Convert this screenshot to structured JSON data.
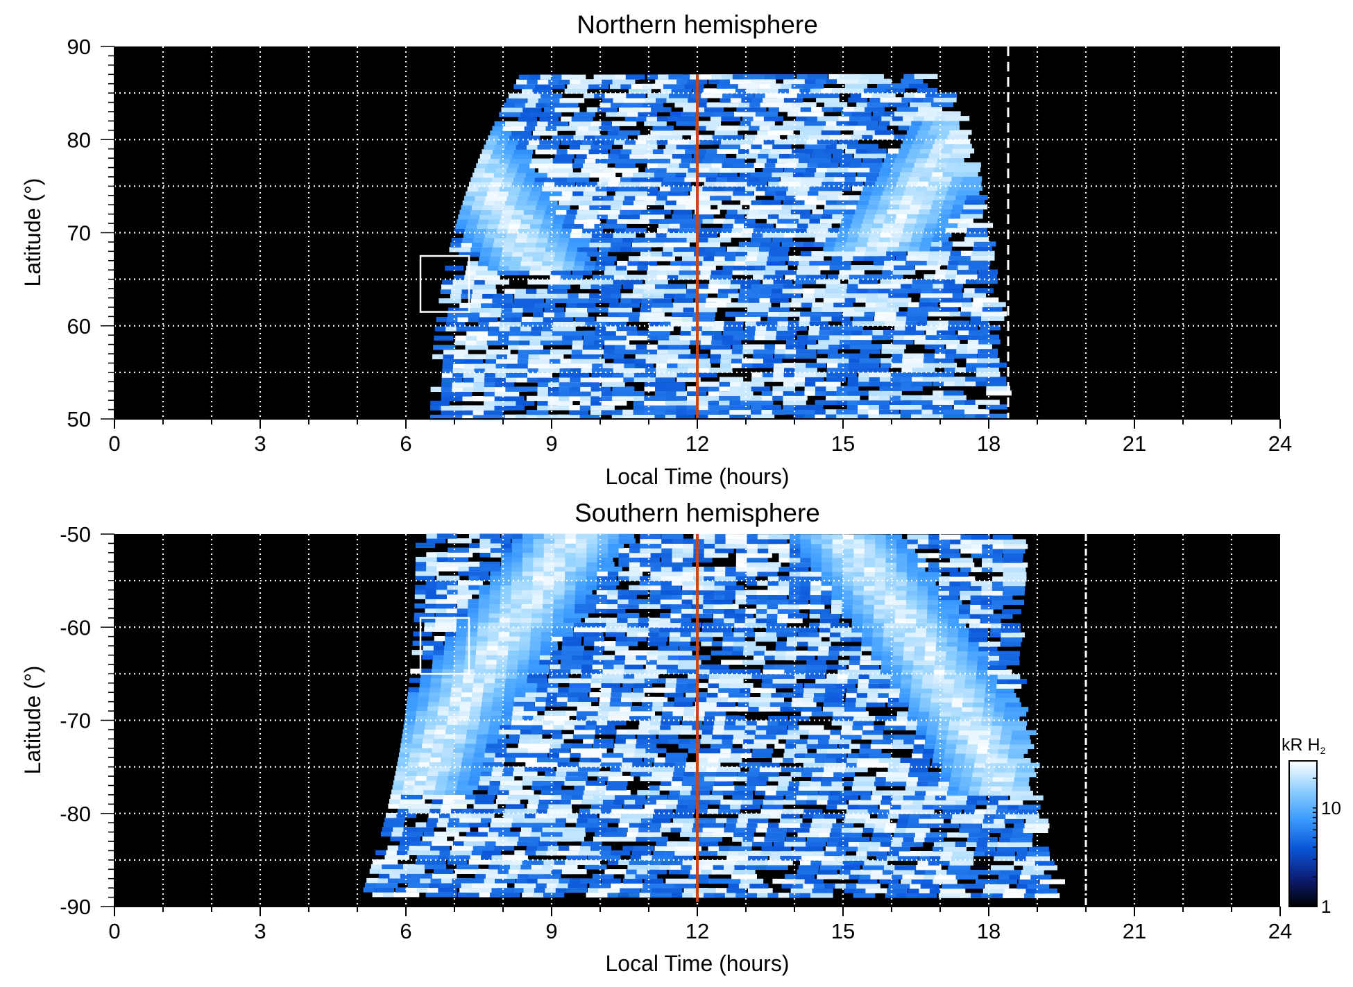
{
  "chart_data": [
    {
      "type": "heatmap",
      "title": "Northern hemisphere",
      "xlabel": "Local Time (hours)",
      "ylabel": "Latitude (°)",
      "xlim": [
        0,
        24
      ],
      "ylim": [
        50,
        90
      ],
      "xticks": [
        0,
        3,
        6,
        9,
        12,
        15,
        18,
        21,
        24
      ],
      "yticks": [
        50,
        60,
        70,
        80,
        90
      ],
      "grid": true,
      "coverage": {
        "lt_min_at_50": 6.5,
        "lt_max_at_50": 18.0,
        "lt_min_top": 8.7,
        "lt_max_top": 16.6,
        "lat_top": 87
      },
      "oval_bands": [
        {
          "side": "dawn",
          "lt_range": [
            6.6,
            9.0
          ],
          "lat_range": [
            68,
            80
          ],
          "peak_kR": 30
        },
        {
          "side": "dusk",
          "lt_range": [
            15.5,
            17.8
          ],
          "lat_range": [
            70,
            80
          ],
          "peak_kR": 30
        }
      ],
      "noon_line_lt": 12,
      "boundary_line_lt": 18.4,
      "box": {
        "lt_range": [
          6.3,
          7.3
        ],
        "lat_range": [
          61.5,
          67.5
        ]
      }
    },
    {
      "type": "heatmap",
      "title": "Southern hemisphere",
      "xlabel": "Local Time (hours)",
      "ylabel": "Latitude (°)",
      "xlim": [
        0,
        24
      ],
      "ylim": [
        -90,
        -50
      ],
      "xticks": [
        0,
        3,
        6,
        9,
        12,
        15,
        18,
        21,
        24
      ],
      "yticks": [
        -90,
        -80,
        -70,
        -60,
        -50
      ],
      "grid": true,
      "coverage": {
        "lt_min_at_50": 6.2,
        "lt_max_at_50": 18.3,
        "lt_min_bottom": 5.0,
        "lt_max_bottom": 19.2,
        "lat_bottom": -89
      },
      "oval_bands": [
        {
          "side": "dawn",
          "lt_range": [
            6.2,
            9.5
          ],
          "lat_range": [
            -78,
            -50
          ],
          "peak_kR": 30
        },
        {
          "side": "dusk",
          "lt_range": [
            15.0,
            18.3
          ],
          "lat_range": [
            -78,
            -50
          ],
          "peak_kR": 30
        }
      ],
      "noon_line_lt": 12,
      "boundary_line_lt": 20.0,
      "box": {
        "lt_range": [
          6.3,
          7.3
        ],
        "lat_range": [
          -65,
          -59
        ]
      }
    }
  ],
  "colorbar": {
    "label_main": "kR H",
    "label_sub": "2",
    "scale": "log",
    "range": [
      1,
      30
    ],
    "ticks": [
      {
        "value": 1,
        "label": "1"
      },
      {
        "value": 10,
        "label": "10"
      }
    ],
    "colors": [
      "#000000",
      "#0d1f7a",
      "#0a56d8",
      "#3b9bff",
      "#8fd0ff",
      "#ffffff"
    ]
  },
  "colors": {
    "noon_line": "#c8461e",
    "grid": "#ffffff",
    "background": "#000000"
  }
}
